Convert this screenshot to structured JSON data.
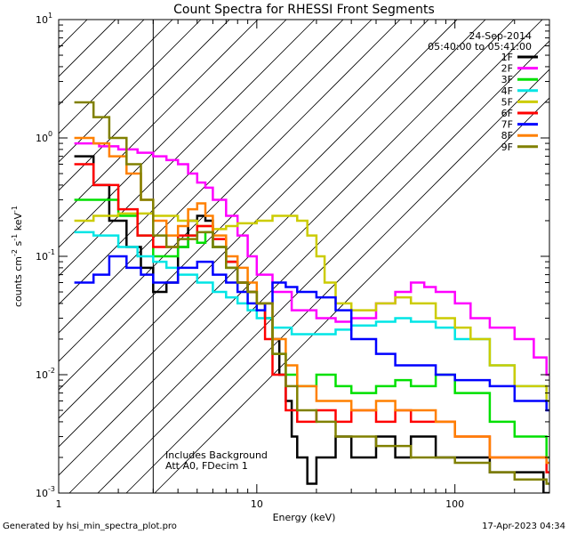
{
  "chart_data": {
    "type": "line",
    "title": "Count Spectra for RHESSI Front Segments",
    "xlabel": "Energy (keV)",
    "ylabel_main": "counts cm",
    "ylabel_sup1": "-2",
    "ylabel_s": " s",
    "ylabel_sup2": "-1",
    "ylabel_kev": " keV",
    "ylabel_sup3": "-1",
    "xscale": "log",
    "yscale": "log",
    "xlim": [
      1,
      300
    ],
    "ylim": [
      0.001,
      10
    ],
    "x_ticks": [
      {
        "value": 10,
        "label": "10"
      },
      {
        "value": 100,
        "label": "100"
      }
    ],
    "x_edge_labels": [
      {
        "value": 1,
        "label": "1"
      }
    ],
    "y_ticks": [
      {
        "value": 10,
        "base": "10",
        "exp": "1"
      },
      {
        "value": 1,
        "base": "10",
        "exp": "0"
      },
      {
        "value": 0.1,
        "base": "10",
        "exp": "-1"
      },
      {
        "value": 0.01,
        "base": "10",
        "exp": "-2"
      },
      {
        "value": 0.001,
        "base": "10",
        "exp": "-3"
      }
    ],
    "hatched_region": {
      "x_from": 1,
      "x_to": 3
    },
    "date": "24-Sep-2014",
    "time_range": "05:40:00 to 05:41:00",
    "annotations": [
      "Includes Background",
      "Att A0, FDecim 1"
    ],
    "footer_left": "Generated by hsi_min_spectra_plot.pro",
    "footer_right": "17-Apr-2023 04:34",
    "series": [
      {
        "name": "1F",
        "color": "#000000",
        "points": [
          [
            1.2,
            0.7
          ],
          [
            1.5,
            0.4
          ],
          [
            1.8,
            0.2
          ],
          [
            2.2,
            0.12
          ],
          [
            2.6,
            0.08
          ],
          [
            3.0,
            0.05
          ],
          [
            3.5,
            0.06
          ],
          [
            4.0,
            0.12
          ],
          [
            4.5,
            0.2
          ],
          [
            5.0,
            0.22
          ],
          [
            5.5,
            0.2
          ],
          [
            6.0,
            0.12
          ],
          [
            7.0,
            0.09
          ],
          [
            8.0,
            0.06
          ],
          [
            9.0,
            0.05
          ],
          [
            10.0,
            0.04
          ],
          [
            11.0,
            0.03
          ],
          [
            12.0,
            0.02
          ],
          [
            13.0,
            0.01
          ],
          [
            14.0,
            0.006
          ],
          [
            15.0,
            0.003
          ],
          [
            16.0,
            0.002
          ],
          [
            18.0,
            0.0012
          ],
          [
            20.0,
            0.002
          ],
          [
            25.0,
            0.003
          ],
          [
            30.0,
            0.002
          ],
          [
            40.0,
            0.003
          ],
          [
            50.0,
            0.002
          ],
          [
            60.0,
            0.003
          ],
          [
            80.0,
            0.002
          ],
          [
            100.0,
            0.002
          ],
          [
            150.0,
            0.0015
          ],
          [
            200.0,
            0.0015
          ],
          [
            280.0,
            0.001
          ]
        ]
      },
      {
        "name": "2F",
        "color": "#ff00ff",
        "points": [
          [
            1.2,
            0.9
          ],
          [
            1.6,
            0.85
          ],
          [
            2.0,
            0.8
          ],
          [
            2.5,
            0.75
          ],
          [
            3.0,
            0.7
          ],
          [
            3.5,
            0.65
          ],
          [
            4.0,
            0.6
          ],
          [
            4.5,
            0.5
          ],
          [
            5.0,
            0.42
          ],
          [
            5.5,
            0.38
          ],
          [
            6.0,
            0.3
          ],
          [
            7.0,
            0.22
          ],
          [
            8.0,
            0.15
          ],
          [
            9.0,
            0.1
          ],
          [
            10.0,
            0.07
          ],
          [
            12.0,
            0.05
          ],
          [
            15.0,
            0.035
          ],
          [
            20.0,
            0.03
          ],
          [
            25.0,
            0.028
          ],
          [
            30.0,
            0.03
          ],
          [
            40.0,
            0.04
          ],
          [
            50.0,
            0.05
          ],
          [
            60.0,
            0.06
          ],
          [
            70.0,
            0.055
          ],
          [
            80.0,
            0.05
          ],
          [
            100.0,
            0.04
          ],
          [
            120.0,
            0.03
          ],
          [
            150.0,
            0.025
          ],
          [
            200.0,
            0.02
          ],
          [
            250.0,
            0.014
          ],
          [
            290.0,
            0.01
          ]
        ]
      },
      {
        "name": "3F",
        "color": "#00e000",
        "points": [
          [
            1.2,
            0.3
          ],
          [
            1.5,
            0.3
          ],
          [
            2.0,
            0.22
          ],
          [
            2.5,
            0.15
          ],
          [
            3.0,
            0.1
          ],
          [
            3.5,
            0.1
          ],
          [
            4.0,
            0.12
          ],
          [
            4.5,
            0.15
          ],
          [
            5.0,
            0.13
          ],
          [
            5.5,
            0.16
          ],
          [
            6.0,
            0.12
          ],
          [
            7.0,
            0.08
          ],
          [
            8.0,
            0.06
          ],
          [
            9.0,
            0.05
          ],
          [
            10.0,
            0.04
          ],
          [
            11.0,
            0.03
          ],
          [
            12.0,
            0.015
          ],
          [
            14.0,
            0.01
          ],
          [
            16.0,
            0.008
          ],
          [
            20.0,
            0.01
          ],
          [
            25.0,
            0.008
          ],
          [
            30.0,
            0.007
          ],
          [
            40.0,
            0.008
          ],
          [
            50.0,
            0.009
          ],
          [
            60.0,
            0.008
          ],
          [
            80.0,
            0.01
          ],
          [
            100.0,
            0.007
          ],
          [
            150.0,
            0.004
          ],
          [
            200.0,
            0.003
          ],
          [
            290.0,
            0.002
          ]
        ]
      },
      {
        "name": "4F",
        "color": "#00e5e5",
        "points": [
          [
            1.2,
            0.16
          ],
          [
            1.5,
            0.15
          ],
          [
            2.0,
            0.12
          ],
          [
            2.5,
            0.1
          ],
          [
            3.0,
            0.09
          ],
          [
            3.5,
            0.08
          ],
          [
            4.0,
            0.07
          ],
          [
            5.0,
            0.06
          ],
          [
            6.0,
            0.05
          ],
          [
            7.0,
            0.045
          ],
          [
            8.0,
            0.04
          ],
          [
            9.0,
            0.035
          ],
          [
            10.0,
            0.03
          ],
          [
            12.0,
            0.025
          ],
          [
            15.0,
            0.022
          ],
          [
            20.0,
            0.022
          ],
          [
            25.0,
            0.024
          ],
          [
            30.0,
            0.026
          ],
          [
            40.0,
            0.028
          ],
          [
            50.0,
            0.03
          ],
          [
            60.0,
            0.028
          ],
          [
            80.0,
            0.025
          ],
          [
            100.0,
            0.02
          ],
          [
            150.0,
            0.012
          ],
          [
            200.0,
            0.008
          ],
          [
            290.0,
            0.006
          ]
        ]
      },
      {
        "name": "5F",
        "color": "#cccc00",
        "points": [
          [
            1.2,
            0.2
          ],
          [
            1.5,
            0.22
          ],
          [
            2.0,
            0.23
          ],
          [
            3.0,
            0.22
          ],
          [
            4.0,
            0.2
          ],
          [
            5.0,
            0.18
          ],
          [
            6.0,
            0.17
          ],
          [
            7.0,
            0.18
          ],
          [
            8.0,
            0.19
          ],
          [
            10.0,
            0.2
          ],
          [
            12.0,
            0.22
          ],
          [
            14.0,
            0.22
          ],
          [
            16.0,
            0.2
          ],
          [
            18.0,
            0.15
          ],
          [
            20.0,
            0.1
          ],
          [
            22.0,
            0.06
          ],
          [
            25.0,
            0.04
          ],
          [
            30.0,
            0.035
          ],
          [
            40.0,
            0.04
          ],
          [
            50.0,
            0.045
          ],
          [
            60.0,
            0.04
          ],
          [
            80.0,
            0.03
          ],
          [
            100.0,
            0.025
          ],
          [
            120.0,
            0.02
          ],
          [
            150.0,
            0.012
          ],
          [
            200.0,
            0.008
          ],
          [
            290.0,
            0.006
          ]
        ]
      },
      {
        "name": "6F",
        "color": "#ff0000",
        "points": [
          [
            1.2,
            0.6
          ],
          [
            1.5,
            0.4
          ],
          [
            2.0,
            0.25
          ],
          [
            2.5,
            0.15
          ],
          [
            3.0,
            0.12
          ],
          [
            4.0,
            0.15
          ],
          [
            5.0,
            0.18
          ],
          [
            6.0,
            0.14
          ],
          [
            7.0,
            0.09
          ],
          [
            8.0,
            0.06
          ],
          [
            9.0,
            0.05
          ],
          [
            10.0,
            0.04
          ],
          [
            11.0,
            0.02
          ],
          [
            12.0,
            0.01
          ],
          [
            14.0,
            0.005
          ],
          [
            16.0,
            0.004
          ],
          [
            20.0,
            0.005
          ],
          [
            25.0,
            0.004
          ],
          [
            30.0,
            0.005
          ],
          [
            40.0,
            0.004
          ],
          [
            50.0,
            0.005
          ],
          [
            60.0,
            0.004
          ],
          [
            80.0,
            0.004
          ],
          [
            100.0,
            0.003
          ],
          [
            150.0,
            0.002
          ],
          [
            200.0,
            0.002
          ],
          [
            290.0,
            0.0015
          ]
        ]
      },
      {
        "name": "7F",
        "color": "#0000ff",
        "points": [
          [
            1.2,
            0.06
          ],
          [
            1.5,
            0.07
          ],
          [
            1.8,
            0.1
          ],
          [
            2.2,
            0.08
          ],
          [
            2.6,
            0.07
          ],
          [
            3.0,
            0.06
          ],
          [
            3.5,
            0.06
          ],
          [
            4.0,
            0.08
          ],
          [
            5.0,
            0.09
          ],
          [
            6.0,
            0.07
          ],
          [
            7.0,
            0.06
          ],
          [
            8.0,
            0.05
          ],
          [
            9.0,
            0.04
          ],
          [
            10.0,
            0.035
          ],
          [
            11.0,
            0.04
          ],
          [
            12.0,
            0.06
          ],
          [
            14.0,
            0.055
          ],
          [
            16.0,
            0.05
          ],
          [
            20.0,
            0.045
          ],
          [
            25.0,
            0.035
          ],
          [
            30.0,
            0.02
          ],
          [
            40.0,
            0.015
          ],
          [
            50.0,
            0.012
          ],
          [
            60.0,
            0.012
          ],
          [
            80.0,
            0.01
          ],
          [
            100.0,
            0.009
          ],
          [
            150.0,
            0.008
          ],
          [
            200.0,
            0.006
          ],
          [
            290.0,
            0.005
          ]
        ]
      },
      {
        "name": "8F",
        "color": "#ff8000",
        "points": [
          [
            1.2,
            1.0
          ],
          [
            1.5,
            0.9
          ],
          [
            1.8,
            0.7
          ],
          [
            2.2,
            0.5
          ],
          [
            2.6,
            0.3
          ],
          [
            3.0,
            0.2
          ],
          [
            3.5,
            0.15
          ],
          [
            4.0,
            0.18
          ],
          [
            4.5,
            0.25
          ],
          [
            5.0,
            0.28
          ],
          [
            5.5,
            0.22
          ],
          [
            6.0,
            0.15
          ],
          [
            7.0,
            0.1
          ],
          [
            8.0,
            0.08
          ],
          [
            9.0,
            0.06
          ],
          [
            10.0,
            0.04
          ],
          [
            12.0,
            0.02
          ],
          [
            14.0,
            0.012
          ],
          [
            16.0,
            0.008
          ],
          [
            20.0,
            0.006
          ],
          [
            25.0,
            0.006
          ],
          [
            30.0,
            0.005
          ],
          [
            40.0,
            0.006
          ],
          [
            50.0,
            0.005
          ],
          [
            60.0,
            0.005
          ],
          [
            80.0,
            0.004
          ],
          [
            100.0,
            0.003
          ],
          [
            150.0,
            0.002
          ],
          [
            200.0,
            0.002
          ],
          [
            290.0,
            0.0018
          ]
        ]
      },
      {
        "name": "9F",
        "color": "#808000",
        "points": [
          [
            1.2,
            2.0
          ],
          [
            1.5,
            1.5
          ],
          [
            1.8,
            1.0
          ],
          [
            2.2,
            0.6
          ],
          [
            2.6,
            0.3
          ],
          [
            3.0,
            0.15
          ],
          [
            3.5,
            0.12
          ],
          [
            4.0,
            0.14
          ],
          [
            5.0,
            0.16
          ],
          [
            6.0,
            0.12
          ],
          [
            7.0,
            0.08
          ],
          [
            8.0,
            0.06
          ],
          [
            9.0,
            0.05
          ],
          [
            10.0,
            0.04
          ],
          [
            12.0,
            0.015
          ],
          [
            14.0,
            0.008
          ],
          [
            16.0,
            0.005
          ],
          [
            20.0,
            0.004
          ],
          [
            25.0,
            0.003
          ],
          [
            30.0,
            0.003
          ],
          [
            40.0,
            0.0025
          ],
          [
            50.0,
            0.0025
          ],
          [
            60.0,
            0.002
          ],
          [
            80.0,
            0.002
          ],
          [
            100.0,
            0.0018
          ],
          [
            150.0,
            0.0015
          ],
          [
            200.0,
            0.0013
          ],
          [
            290.0,
            0.0012
          ]
        ]
      }
    ]
  }
}
